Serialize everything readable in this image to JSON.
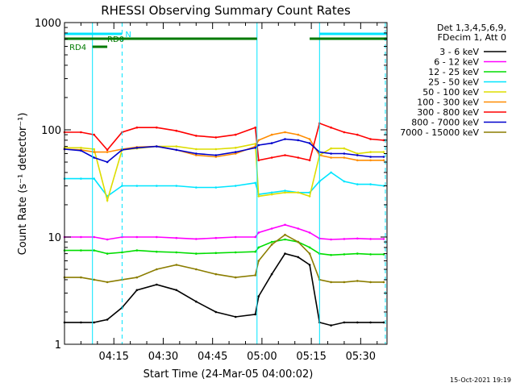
{
  "chart_data": {
    "type": "line",
    "title": "RHESSI Observing Summary Count Rates",
    "xlabel": "Start Time (24-Mar-05 04:00:02)",
    "ylabel": "Count Rate (s⁻¹ detector⁻¹)",
    "yscale": "log",
    "ylim": [
      1,
      1000
    ],
    "xlim_minutes": [
      0,
      98
    ],
    "xtick_labels": [
      "04:15",
      "04:30",
      "04:45",
      "05:00",
      "05:15",
      "05:30"
    ],
    "xtick_minutes": [
      15,
      30,
      45,
      60,
      75,
      90
    ],
    "ytick_labels": [
      "1",
      "10",
      "100",
      "1000"
    ],
    "ytick_values": [
      1,
      10,
      100,
      1000
    ],
    "grid": false,
    "legend_position": "right",
    "legend_header": [
      "Det 1,3,4,5,6,9,",
      "FDecim 1, Att 0"
    ],
    "flags": [
      {
        "label": "N",
        "color": "#00e5ff",
        "intervals": [
          [
            0,
            17.5
          ],
          [
            77.5,
            98
          ]
        ]
      },
      {
        "label": "RD0",
        "color": "#007a00",
        "intervals": [
          [
            0,
            58.5
          ],
          [
            74.5,
            98
          ]
        ]
      },
      {
        "label": "RD4",
        "color": "#007a00",
        "intervals": [
          [
            8.5,
            13
          ]
        ]
      }
    ],
    "boundaries_solid": [
      8.5,
      58.5,
      77.5
    ],
    "boundaries_dashed": [
      17.5,
      97.5
    ],
    "x": [
      0,
      5,
      9,
      13,
      17.5,
      22,
      28,
      34,
      40,
      46,
      52,
      58,
      59,
      63,
      67,
      71,
      74.5,
      77.5,
      81,
      85,
      89,
      93,
      97
    ],
    "series": [
      {
        "name": "3 - 6 keV",
        "color": "#000000",
        "values": [
          1.6,
          1.6,
          1.6,
          1.7,
          2.2,
          3.2,
          3.6,
          3.2,
          2.5,
          2.0,
          1.8,
          1.9,
          2.8,
          4.5,
          7.0,
          6.5,
          5.5,
          1.6,
          1.5,
          1.6,
          1.6,
          1.6,
          1.6
        ]
      },
      {
        "name": "6 - 12 keV",
        "color": "#ff00ff",
        "values": [
          10,
          10,
          10,
          9.5,
          10,
          10,
          10,
          9.8,
          9.6,
          9.8,
          10,
          10,
          11,
          12,
          13,
          12,
          11,
          9.7,
          9.5,
          9.6,
          9.7,
          9.6,
          9.6
        ]
      },
      {
        "name": "12 - 25 keV",
        "color": "#00dd00",
        "values": [
          7.5,
          7.5,
          7.5,
          7.0,
          7.2,
          7.5,
          7.3,
          7.2,
          7.0,
          7.1,
          7.2,
          7.3,
          8.0,
          9.0,
          9.5,
          9.0,
          8.0,
          7.0,
          6.8,
          6.9,
          7.0,
          6.9,
          6.9
        ]
      },
      {
        "name": "25 - 50 keV",
        "color": "#00e5ff",
        "values": [
          35,
          35,
          35,
          24,
          30,
          30,
          30,
          30,
          29,
          29,
          30,
          32,
          25,
          26,
          27,
          26,
          26,
          33,
          40,
          33,
          31,
          31,
          30
        ]
      },
      {
        "name": "50 - 100 keV",
        "color": "#dddd00",
        "values": [
          68,
          68,
          66,
          22,
          65,
          67,
          70,
          70,
          66,
          66,
          68,
          74,
          24,
          25,
          26,
          26,
          24,
          58,
          67,
          67,
          60,
          62,
          62
        ]
      },
      {
        "name": "100 - 300 keV",
        "color": "#ff8c00",
        "values": [
          66,
          65,
          62,
          62,
          66,
          69,
          70,
          65,
          58,
          56,
          60,
          70,
          80,
          90,
          95,
          90,
          82,
          58,
          55,
          55,
          52,
          52,
          52
        ]
      },
      {
        "name": "300 - 800 keV",
        "color": "#ff0000",
        "values": [
          95,
          95,
          90,
          65,
          95,
          105,
          105,
          98,
          88,
          85,
          90,
          105,
          52,
          55,
          58,
          55,
          52,
          115,
          105,
          95,
          90,
          82,
          80
        ]
      },
      {
        "name": "800 - 7000 keV",
        "color": "#0000cc",
        "values": [
          66,
          64,
          55,
          50,
          65,
          68,
          70,
          65,
          60,
          58,
          62,
          68,
          72,
          75,
          82,
          80,
          75,
          62,
          60,
          60,
          58,
          56,
          56
        ]
      },
      {
        "name": "7000 - 15000 keV",
        "color": "#8b7d00",
        "values": [
          4.2,
          4.2,
          4.0,
          3.8,
          4.0,
          4.2,
          5.0,
          5.5,
          5.0,
          4.5,
          4.2,
          4.4,
          6.0,
          8.5,
          10.5,
          9.0,
          7.0,
          4.0,
          3.8,
          3.8,
          3.9,
          3.8,
          3.8
        ]
      }
    ],
    "footer_text": "15-Oct-2021 19:19"
  }
}
